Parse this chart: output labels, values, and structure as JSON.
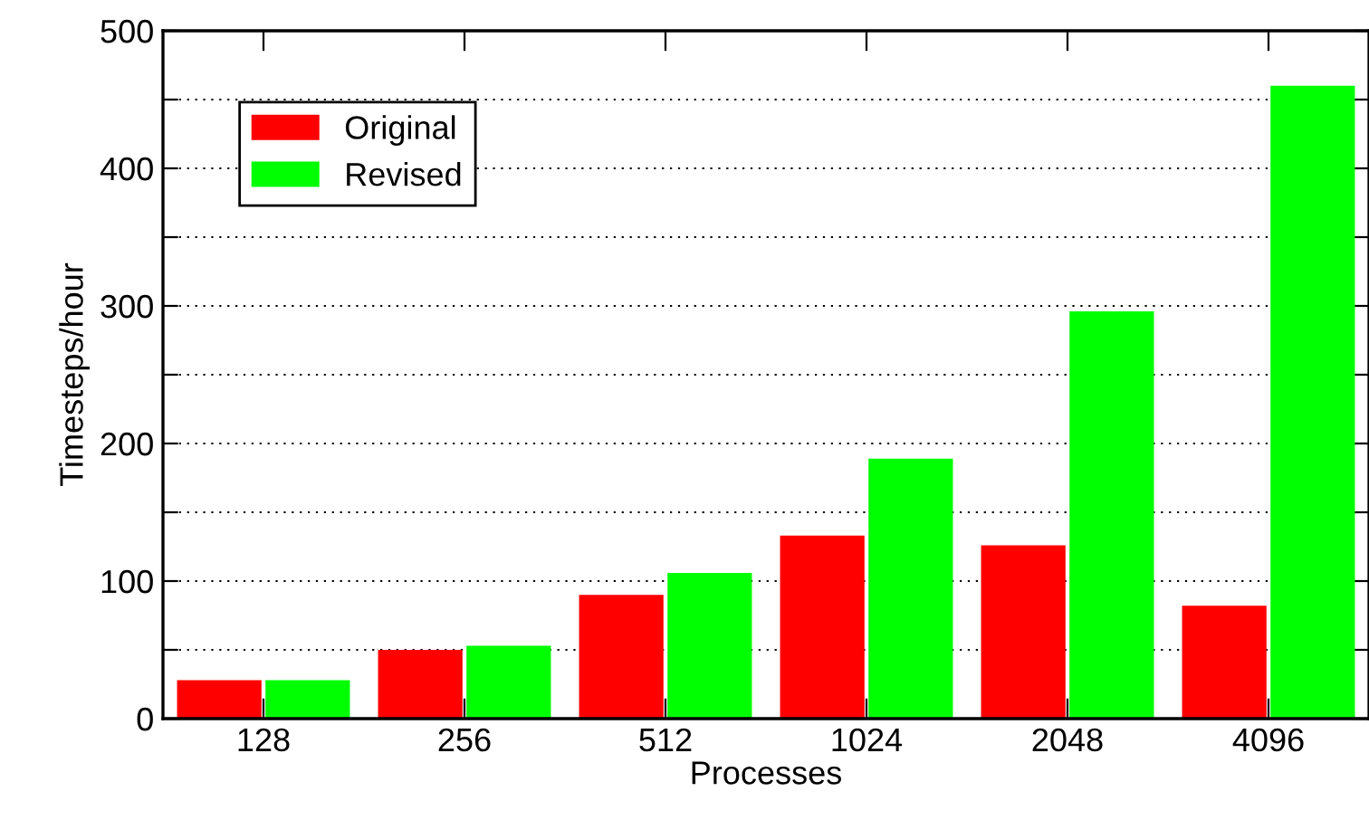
{
  "chart_data": {
    "type": "bar",
    "xlabel": "Processes",
    "ylabel": "Timesteps/hour",
    "categories": [
      "128",
      "256",
      "512",
      "1024",
      "2048",
      "4096"
    ],
    "series": [
      {
        "name": "Original",
        "color": "#ff0000",
        "values": [
          28,
          50,
          90,
          133,
          126,
          82
        ]
      },
      {
        "name": "Revised",
        "color": "#00ff00",
        "values": [
          28,
          53,
          106,
          189,
          296,
          460
        ]
      }
    ],
    "ylim": [
      0,
      500
    ],
    "yticks": [
      0,
      {
        "value": 50,
        "label": null
      },
      100,
      {
        "value": 150,
        "label": null
      },
      200,
      {
        "value": 250,
        "label": null
      },
      300,
      {
        "value": 350,
        "label": null
      },
      400,
      {
        "value": 450,
        "label": null
      },
      500
    ],
    "grid": "y",
    "legend": "top left"
  }
}
